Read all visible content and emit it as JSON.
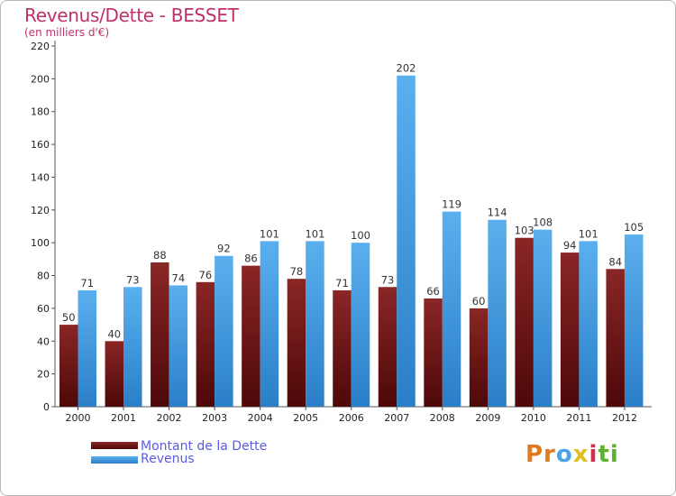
{
  "chart_data": {
    "type": "bar",
    "title": "Revenus/Dette - BESSET",
    "subtitle": "(en milliers d'€)",
    "categories": [
      "2000",
      "2001",
      "2002",
      "2003",
      "2004",
      "2005",
      "2006",
      "2007",
      "2008",
      "2009",
      "2010",
      "2011",
      "2012"
    ],
    "series": [
      {
        "name": "Montant de la Dette",
        "color": "#7a1a1a",
        "values": [
          50,
          40,
          88,
          76,
          86,
          78,
          71,
          73,
          66,
          60,
          103,
          94,
          84
        ]
      },
      {
        "name": "Revenus",
        "color": "#4aa3e6",
        "values": [
          71,
          73,
          74,
          92,
          101,
          101,
          100,
          202,
          119,
          114,
          108,
          101,
          105
        ]
      }
    ],
    "ylim": [
      0,
      220
    ],
    "yticks": [
      0,
      20,
      40,
      60,
      80,
      100,
      120,
      140,
      160,
      180,
      200,
      220
    ],
    "grid": false,
    "legend_placement": "bottom-left"
  },
  "brand": {
    "text_parts": [
      "Pr",
      "o",
      "x",
      "i",
      "ti"
    ],
    "colors": [
      "#e07a1f",
      "#4aa3e6",
      "#e0c020",
      "#d03050",
      "#60b030"
    ]
  }
}
